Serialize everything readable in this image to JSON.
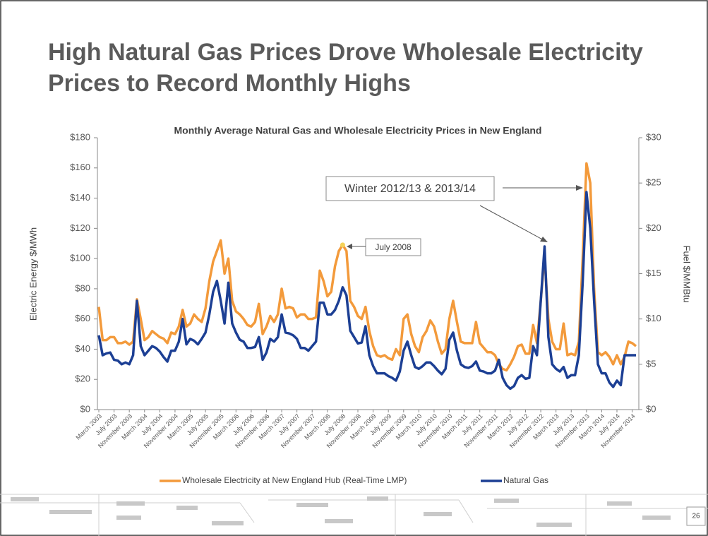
{
  "slide": {
    "title": "High Natural Gas Prices Drove Wholesale Electricity Prices to Record Monthly Highs",
    "page_number": "26"
  },
  "chart_data": {
    "type": "line",
    "title": "Monthly Average Natural Gas and Wholesale Electricity Prices in New England",
    "y_label": "Electric  Energy $/MWh",
    "y2_label": "Fuel $/MMBtu",
    "categories": [
      "March 2003",
      null,
      null,
      null,
      "July 2003",
      null,
      null,
      null,
      "November 2003",
      null,
      null,
      null,
      "March 2004",
      null,
      null,
      null,
      "July 2004",
      null,
      null,
      null,
      "November 2004",
      null,
      null,
      null,
      "March 2005",
      null,
      null,
      null,
      "July 2005",
      null,
      null,
      null,
      "November 2005",
      null,
      null,
      null,
      "March 2006",
      null,
      null,
      null,
      "July 2006",
      null,
      null,
      null,
      "November 2006",
      null,
      null,
      null,
      "March 2007",
      null,
      null,
      null,
      "July 2007",
      null,
      null,
      null,
      "November 2007",
      null,
      null,
      null,
      "March 2008",
      null,
      null,
      null,
      "July 2008",
      null,
      null,
      null,
      "November 2008",
      null,
      null,
      null,
      "March 2009",
      null,
      null,
      null,
      "July 2009",
      null,
      null,
      null,
      "November 2009",
      null,
      null,
      null,
      "March 2010",
      null,
      null,
      null,
      "July 2010",
      null,
      null,
      null,
      "November 2010",
      null,
      null,
      null,
      "March 2011",
      null,
      null,
      null,
      "July 2011",
      null,
      null,
      null,
      "November 2011",
      null,
      null,
      null,
      "March 2012",
      null,
      null,
      null,
      "July 2012",
      null,
      null,
      null,
      "November 2012",
      null,
      null,
      null,
      "March 2013",
      null,
      null,
      null,
      "July 2013",
      null,
      null,
      null,
      "November 2013",
      null,
      null,
      null,
      "March 2014",
      null,
      null,
      null,
      "July 2014",
      null,
      null,
      null,
      "November 2014",
      null
    ],
    "series": [
      {
        "name": "Wholesale Electricity at New England Hub (Real-Time LMP)",
        "color": "#f39a3b",
        "values": [
          68,
          46,
          46,
          48,
          48,
          44,
          44,
          45,
          43,
          45,
          73,
          60,
          46,
          48,
          52,
          50,
          48,
          47,
          44,
          51,
          50,
          55,
          66,
          55,
          57,
          63,
          60,
          58,
          67,
          85,
          98,
          105,
          112,
          90,
          100,
          72,
          65,
          63,
          60,
          56,
          55,
          58,
          70,
          50,
          55,
          62,
          58,
          63,
          80,
          67,
          68,
          67,
          61,
          63,
          63,
          60,
          60,
          61,
          92,
          85,
          75,
          78,
          95,
          105,
          109,
          105,
          72,
          68,
          62,
          60,
          68,
          52,
          42,
          36,
          35,
          36,
          34,
          33,
          40,
          36,
          60,
          63,
          50,
          42,
          38,
          48,
          52,
          59,
          55,
          45,
          37,
          40,
          60,
          72,
          58,
          45,
          44,
          44,
          44,
          58,
          44,
          41,
          38,
          38,
          36,
          30,
          27,
          26,
          30,
          35,
          42,
          43,
          37,
          37,
          56,
          44,
          72,
          102,
          60,
          45,
          40,
          40,
          57,
          36,
          37,
          36,
          45,
          100,
          163,
          150,
          80,
          38,
          36,
          38,
          35,
          30,
          36,
          30,
          35,
          45,
          44,
          42
        ]
      },
      {
        "name": "Natural Gas",
        "color": "#1c3f94",
        "axis": "y2",
        "values": [
          8.2,
          6,
          6.2,
          6.3,
          5.5,
          5.4,
          5,
          5.2,
          5,
          6,
          12,
          7,
          6,
          6.5,
          7,
          6.8,
          6.4,
          5.8,
          5.3,
          6.5,
          6.5,
          7.5,
          10,
          7.2,
          7.8,
          7.6,
          7.2,
          7.8,
          8.5,
          10.5,
          13,
          14.2,
          12,
          9.5,
          14,
          9.5,
          8.5,
          7.7,
          7.5,
          6.8,
          6.8,
          6.9,
          8,
          5.5,
          6.3,
          7.8,
          7.5,
          8,
          10.5,
          8.5,
          8.4,
          8.2,
          7.8,
          6.8,
          6.8,
          6.5,
          7,
          7.5,
          11.8,
          11.8,
          10.5,
          10.5,
          11,
          12,
          13.5,
          12.6,
          8.7,
          8,
          7.3,
          7.4,
          9.2,
          6,
          4.8,
          4,
          4,
          4,
          3.7,
          3.5,
          3.2,
          4.2,
          6.5,
          7.5,
          6,
          4.7,
          4.5,
          4.8,
          5.2,
          5.2,
          4.8,
          4.3,
          3.9,
          4.5,
          7.7,
          8.5,
          6.5,
          5,
          4.7,
          4.6,
          4.8,
          5.3,
          4.3,
          4.2,
          4,
          4,
          4.3,
          5.5,
          3.5,
          2.7,
          2.3,
          2.6,
          3.5,
          3.8,
          3.4,
          3.5,
          7,
          6,
          12,
          18,
          8,
          5,
          4.5,
          4.2,
          4.7,
          3.5,
          3.8,
          3.8,
          6,
          14,
          24,
          20,
          12,
          5,
          4,
          4,
          3,
          2.5,
          3.2,
          2.7,
          6,
          6,
          6,
          6
        ]
      }
    ],
    "ylim": [
      0,
      180
    ],
    "yticks": [
      {
        "value": 0,
        "label": "$0"
      },
      {
        "value": 20,
        "label": "$20"
      },
      {
        "value": 40,
        "label": "$40"
      },
      {
        "value": 60,
        "label": "$60"
      },
      {
        "value": 80,
        "label": "$80"
      },
      {
        "value": 100,
        "label": "$100"
      },
      {
        "value": 120,
        "label": "$120"
      },
      {
        "value": 140,
        "label": "$140"
      },
      {
        "value": 160,
        "label": "$160"
      },
      {
        "value": 180,
        "label": "$180"
      }
    ],
    "y2lim": [
      0,
      30
    ],
    "y2ticks": [
      {
        "value": 0,
        "label": "$0"
      },
      {
        "value": 5,
        "label": "$5"
      },
      {
        "value": 10,
        "label": "$10"
      },
      {
        "value": 15,
        "label": "$15"
      },
      {
        "value": 20,
        "label": "$20"
      },
      {
        "value": 25,
        "label": "$25"
      },
      {
        "value": 30,
        "label": "$30"
      }
    ],
    "grid": false,
    "legend": "bottom",
    "annotations": [
      {
        "text": "Winter 2012/13 & 2013/14"
      },
      {
        "text": "July 2008",
        "marker_color": "#f5d35a"
      }
    ]
  }
}
